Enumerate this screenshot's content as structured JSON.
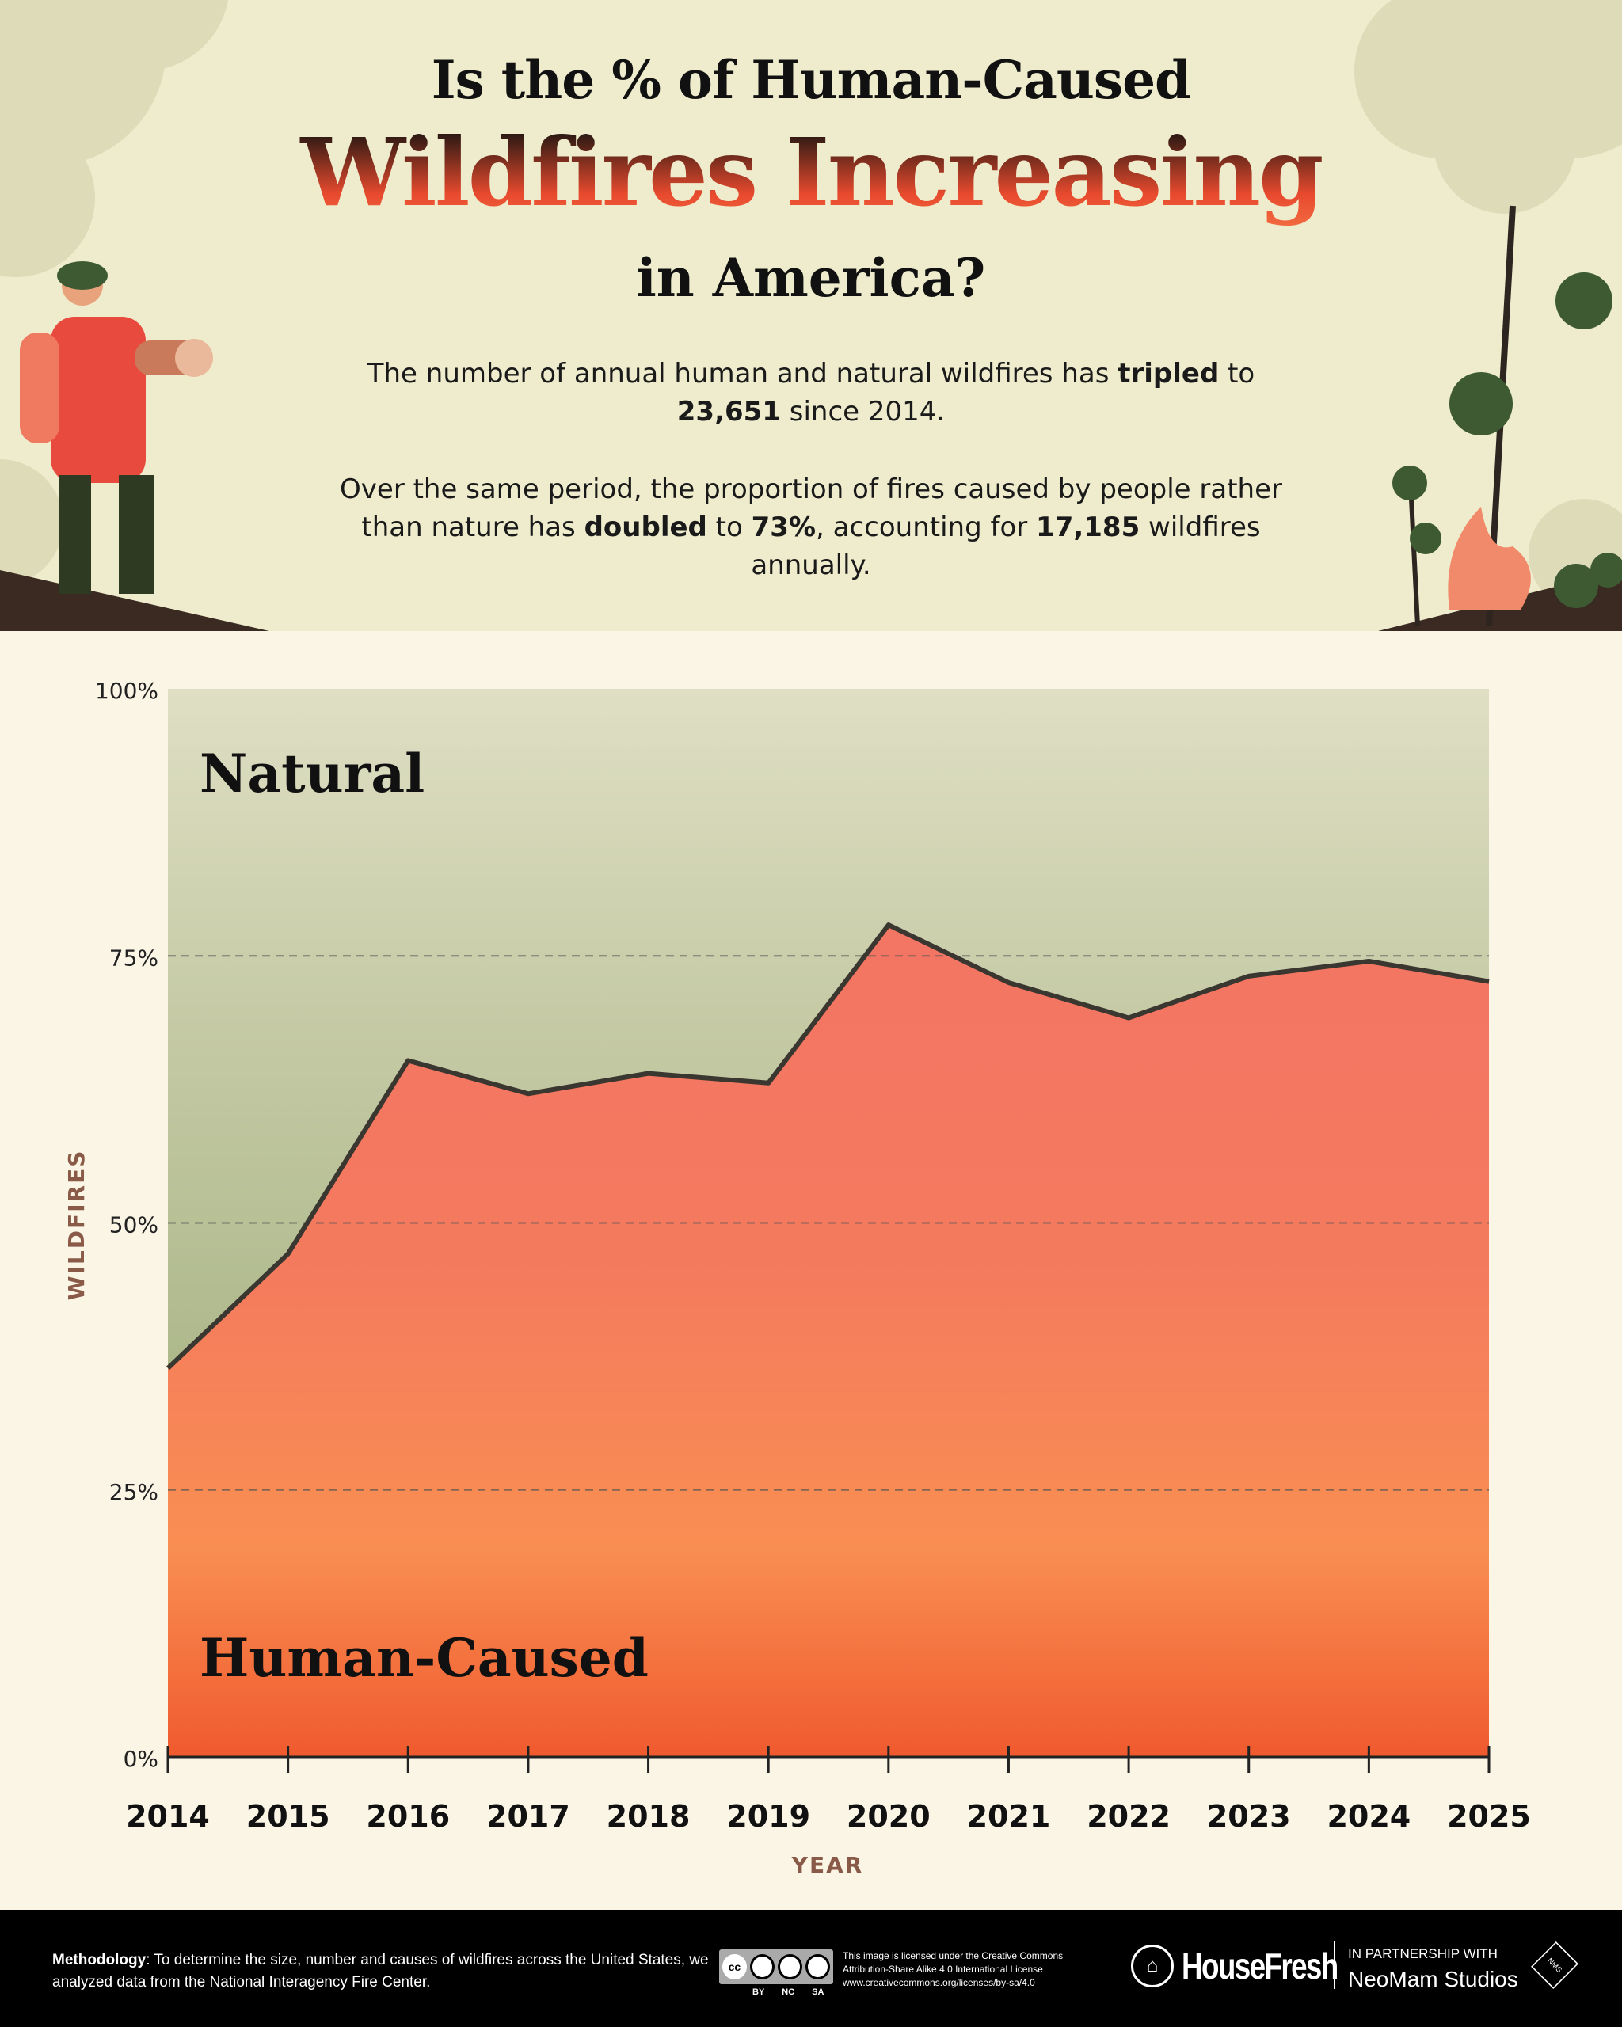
{
  "header": {
    "title_line1": "Is the % of Human-Caused",
    "title_line2": "Wildfires Increasing",
    "title_line3": "in America?",
    "para1": [
      {
        "t": "The number of annual human and natural wildfires has "
      },
      {
        "t": "tripled",
        "b": true
      },
      {
        "t": " to "
      },
      {
        "t": "23,651",
        "b": true
      },
      {
        "t": " since 2014."
      }
    ],
    "para2": [
      {
        "t": "Over the same period, the proportion of fires caused by people rather than nature has "
      },
      {
        "t": "doubled",
        "b": true
      },
      {
        "t": " to "
      },
      {
        "t": "73%",
        "b": true
      },
      {
        "t": ", accounting for "
      },
      {
        "t": "17,185",
        "b": true
      },
      {
        "t": " wildfires annually."
      }
    ]
  },
  "chart_data": {
    "type": "area",
    "xlabel": "YEAR",
    "ylabel": "WILDFIRES",
    "categories": [
      "2014",
      "2015",
      "2016",
      "2017",
      "2018",
      "2019",
      "2020",
      "2021",
      "2022",
      "2023",
      "2024",
      "2025"
    ],
    "series": [
      {
        "name": "Human-Caused",
        "values": [
          36.4,
          47.1,
          65.2,
          62.1,
          64.0,
          63.1,
          77.9,
          72.5,
          69.2,
          73.1,
          74.5,
          72.6
        ],
        "color": "#f37564"
      },
      {
        "name": "Natural",
        "values": [
          63.6,
          52.9,
          34.8,
          37.9,
          36.0,
          36.9,
          22.1,
          27.5,
          30.8,
          26.9,
          25.5,
          27.4
        ],
        "color": "#a8b685"
      }
    ],
    "ylim": [
      0,
      100
    ],
    "yticks": [
      "0%",
      "25%",
      "50%",
      "75%",
      "100%"
    ],
    "ytick_values": [
      0,
      25,
      50,
      75,
      100
    ],
    "grid": "dashed horizontal",
    "stacked": true
  },
  "footer": {
    "methodology_label": "Methodology",
    "methodology_text": ": To determine the size, number and causes of wildfires across the United States, we analyzed data from the National Interagency Fire Center.",
    "license_badges": [
      "BY",
      "NC",
      "SA"
    ],
    "license_lines": [
      "This image is licensed under the Creative Commons",
      "Attribution-Share Alike 4.0 International License",
      "www.creativecommons.org/licenses/by-sa/4.0"
    ],
    "brand": "HouseFresh",
    "partner_label": "IN PARTNERSHIP WITH",
    "partner": "NeoMam Studios"
  }
}
